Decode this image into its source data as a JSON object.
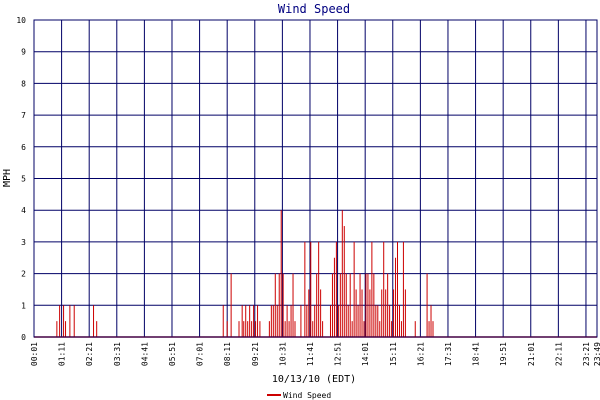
{
  "chart_data": {
    "type": "bar",
    "title": "Wind Speed",
    "xlabel": "10/13/10 (EDT)",
    "ylabel": "MPH",
    "ylim": [
      0,
      10
    ],
    "yticks": [
      "0",
      "1",
      "2",
      "3",
      "4",
      "5",
      "6",
      "7",
      "8",
      "9",
      "10"
    ],
    "xticks": [
      "00:01",
      "01:11",
      "02:21",
      "03:31",
      "04:41",
      "05:51",
      "07:01",
      "08:11",
      "09:21",
      "10:31",
      "11:41",
      "12:51",
      "14:01",
      "15:11",
      "16:21",
      "17:31",
      "18:41",
      "19:51",
      "21:01",
      "22:11",
      "23:21",
      "23:49"
    ],
    "x_range": [
      "00:01",
      "23:49"
    ],
    "grid": true,
    "legend_position": "bottom-left",
    "colors": {
      "series": "#cc0000",
      "grid": "#000066",
      "title": "#000080",
      "frame": "#000066"
    },
    "series": [
      {
        "name": "Wind Speed",
        "points": [
          [
            "00:59",
            0.5
          ],
          [
            "01:06",
            1.0
          ],
          [
            "01:16",
            1.0
          ],
          [
            "01:21",
            0.5
          ],
          [
            "01:32",
            1.0
          ],
          [
            "01:43",
            1.0
          ],
          [
            "02:32",
            1.0
          ],
          [
            "02:40",
            0.5
          ],
          [
            "08:01",
            1.0
          ],
          [
            "08:11",
            0.5
          ],
          [
            "08:21",
            2.0
          ],
          [
            "08:41",
            0.5
          ],
          [
            "08:49",
            1.0
          ],
          [
            "08:53",
            0.5
          ],
          [
            "08:58",
            1.0
          ],
          [
            "09:03",
            0.5
          ],
          [
            "09:08",
            1.0
          ],
          [
            "09:13",
            0.5
          ],
          [
            "09:18",
            1.0
          ],
          [
            "09:23",
            0.5
          ],
          [
            "09:28",
            1.0
          ],
          [
            "09:34",
            0.5
          ],
          [
            "09:58",
            0.5
          ],
          [
            "10:03",
            1.0
          ],
          [
            "10:08",
            1.0
          ],
          [
            "10:13",
            2.0
          ],
          [
            "10:18",
            1.0
          ],
          [
            "10:23",
            2.0
          ],
          [
            "10:28",
            4.0
          ],
          [
            "10:33",
            2.0
          ],
          [
            "10:38",
            0.5
          ],
          [
            "10:43",
            1.0
          ],
          [
            "10:48",
            0.5
          ],
          [
            "10:53",
            1.0
          ],
          [
            "10:58",
            2.0
          ],
          [
            "11:03",
            0.5
          ],
          [
            "11:18",
            1.0
          ],
          [
            "11:28",
            3.0
          ],
          [
            "11:33",
            1.0
          ],
          [
            "11:38",
            1.5
          ],
          [
            "11:43",
            3.0
          ],
          [
            "11:48",
            0.5
          ],
          [
            "11:53",
            1.0
          ],
          [
            "11:58",
            2.0
          ],
          [
            "12:03",
            3.0
          ],
          [
            "12:08",
            1.5
          ],
          [
            "12:13",
            0.5
          ],
          [
            "12:33",
            1.0
          ],
          [
            "12:38",
            2.0
          ],
          [
            "12:43",
            2.5
          ],
          [
            "12:48",
            3.0
          ],
          [
            "12:53",
            1.0
          ],
          [
            "12:58",
            2.0
          ],
          [
            "13:03",
            4.0
          ],
          [
            "13:08",
            3.5
          ],
          [
            "13:13",
            2.0
          ],
          [
            "13:18",
            1.0
          ],
          [
            "13:23",
            2.0
          ],
          [
            "13:28",
            0.5
          ],
          [
            "13:33",
            3.0
          ],
          [
            "13:38",
            1.5
          ],
          [
            "13:43",
            1.0
          ],
          [
            "13:48",
            2.0
          ],
          [
            "13:53",
            1.5
          ],
          [
            "13:58",
            0.5
          ],
          [
            "14:03",
            2.0
          ],
          [
            "14:08",
            2.0
          ],
          [
            "14:13",
            1.5
          ],
          [
            "14:18",
            3.0
          ],
          [
            "14:23",
            2.0
          ],
          [
            "14:28",
            1.0
          ],
          [
            "14:33",
            1.0
          ],
          [
            "14:38",
            0.5
          ],
          [
            "14:43",
            1.5
          ],
          [
            "14:48",
            3.0
          ],
          [
            "14:53",
            1.5
          ],
          [
            "14:58",
            2.0
          ],
          [
            "15:03",
            1.0
          ],
          [
            "15:08",
            0.5
          ],
          [
            "15:13",
            1.5
          ],
          [
            "15:18",
            2.5
          ],
          [
            "15:23",
            3.0
          ],
          [
            "15:28",
            1.0
          ],
          [
            "15:33",
            0.5
          ],
          [
            "15:38",
            3.0
          ],
          [
            "15:43",
            1.5
          ],
          [
            "16:08",
            0.5
          ],
          [
            "16:38",
            2.0
          ],
          [
            "16:43",
            0.5
          ],
          [
            "16:48",
            1.0
          ],
          [
            "16:53",
            0.5
          ]
        ]
      }
    ]
  }
}
